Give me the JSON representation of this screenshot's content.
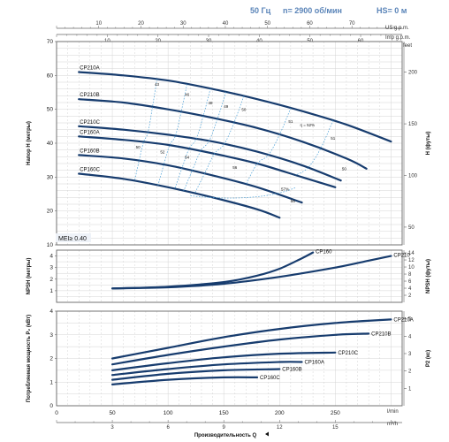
{
  "header": {
    "frequency": "50 Гц",
    "speed": "n= 2900 об/мин",
    "hs": "HS= 0 м"
  },
  "colors": {
    "curve": "#173c6e",
    "efficiency_iso": "#4a9fd6",
    "header": "#5a84b8"
  },
  "top_units": {
    "us_gpm": "US g.p.m.",
    "imp_gpm": "Imp g.p.m."
  },
  "top_axis_us": [
    10,
    20,
    30,
    40,
    50,
    60,
    70
  ],
  "top_axis_imp": [
    10,
    20,
    30,
    40,
    50,
    60
  ],
  "x_label": "Производительность Q",
  "x_unit_l": "l/min",
  "x_unit_m3": "m³/h",
  "x_ticks": [
    50,
    100,
    150,
    200,
    250
  ],
  "x_ticks_m3": [
    3,
    6,
    9,
    12,
    15
  ],
  "mei": "MEI≥ 0.40",
  "chart_data": [
    {
      "type": "line",
      "panel": "head",
      "ylabel": "Напор H (метры)",
      "y2label": "H (футы)",
      "y2unit": "feet",
      "ylim": [
        10,
        70
      ],
      "yticks": [
        10,
        20,
        30,
        40,
        50,
        60,
        70
      ],
      "y2ticks": [
        50,
        100,
        150,
        200
      ],
      "series": [
        {
          "name": "CP210A",
          "x": [
            20,
            60,
            100,
            140,
            180,
            220,
            260,
            300
          ],
          "y": [
            61,
            60,
            58.5,
            56,
            53,
            49.5,
            45.5,
            40.5
          ]
        },
        {
          "name": "CP210B",
          "x": [
            20,
            60,
            100,
            140,
            180,
            220,
            260,
            278
          ],
          "y": [
            53,
            52,
            50,
            47.5,
            44.5,
            40.5,
            35.5,
            32.5
          ]
        },
        {
          "name": "CP210C",
          "x": [
            20,
            60,
            100,
            140,
            180,
            220,
            255
          ],
          "y": [
            45,
            44,
            42.5,
            40.5,
            37.5,
            33.5,
            29
          ]
        },
        {
          "name": "CP160A",
          "x": [
            20,
            60,
            100,
            140,
            180,
            220,
            250
          ],
          "y": [
            42,
            41,
            39.5,
            37,
            34,
            30,
            27
          ]
        },
        {
          "name": "CP160B",
          "x": [
            20,
            60,
            100,
            140,
            180,
            220
          ],
          "y": [
            36.5,
            35.5,
            33.5,
            30.5,
            27,
            22.5
          ]
        },
        {
          "name": "CP160C",
          "x": [
            20,
            60,
            100,
            140,
            180,
            200
          ],
          "y": [
            31,
            29.5,
            27,
            24,
            20.5,
            18
          ]
        }
      ],
      "annotations": [
        {
          "text": "43",
          "x": 90,
          "y": 57
        },
        {
          "text": "46",
          "x": 117,
          "y": 54
        },
        {
          "text": "48",
          "x": 138,
          "y": 51.5
        },
        {
          "text": "49",
          "x": 152,
          "y": 50.5
        },
        {
          "text": "50",
          "x": 168,
          "y": 49.5
        },
        {
          "text": "51",
          "x": 210,
          "y": 46
        },
        {
          "text": "η = 52%",
          "x": 225,
          "y": 45
        },
        {
          "text": "51",
          "x": 248,
          "y": 41
        },
        {
          "text": "50",
          "x": 73,
          "y": 38.5
        },
        {
          "text": "52",
          "x": 95,
          "y": 37
        },
        {
          "text": "54",
          "x": 117,
          "y": 35.5
        },
        {
          "text": "56",
          "x": 160,
          "y": 32.5
        },
        {
          "text": "56",
          "x": 212,
          "y": 22.5
        },
        {
          "text": "57%",
          "x": 205,
          "y": 26
        },
        {
          "text": "50",
          "x": 258,
          "y": 32
        }
      ]
    },
    {
      "type": "line",
      "panel": "npsh",
      "ylabel": "NPSH (метры)",
      "y2label": "NPSH (футы)",
      "ylim": [
        0,
        4.5
      ],
      "yticks": [
        1,
        2,
        3,
        4
      ],
      "y2ticks": [
        2,
        4,
        6,
        8,
        10,
        12,
        14
      ],
      "series": [
        {
          "name": "CP160",
          "x": [
            50,
            100,
            150,
            180,
            200,
            220,
            230
          ],
          "y": [
            1.2,
            1.35,
            1.75,
            2.3,
            2.9,
            3.8,
            4.3
          ]
        },
        {
          "name": "CP210",
          "x": [
            50,
            100,
            150,
            200,
            250,
            280,
            300
          ],
          "y": [
            1.2,
            1.3,
            1.6,
            2.2,
            3.0,
            3.6,
            4.0
          ]
        }
      ]
    },
    {
      "type": "line",
      "panel": "power",
      "ylabel": "Потребляемая мощность P₂ (кВт)",
      "y2label": "P2 (кс)",
      "ylim": [
        0,
        4
      ],
      "yticks": [
        1,
        2,
        3,
        4
      ],
      "y2ticks": [
        1,
        2,
        3,
        4,
        5
      ],
      "series": [
        {
          "name": "CP210A",
          "x": [
            50,
            100,
            150,
            200,
            250,
            300
          ],
          "y": [
            2.0,
            2.45,
            2.9,
            3.25,
            3.5,
            3.65
          ]
        },
        {
          "name": "CP210B",
          "x": [
            50,
            100,
            150,
            200,
            250,
            280
          ],
          "y": [
            1.75,
            2.15,
            2.5,
            2.8,
            3.0,
            3.05
          ]
        },
        {
          "name": "CP210C",
          "x": [
            50,
            100,
            150,
            200,
            250
          ],
          "y": [
            1.5,
            1.8,
            2.05,
            2.2,
            2.25
          ]
        },
        {
          "name": "CP160A",
          "x": [
            50,
            100,
            150,
            200,
            220
          ],
          "y": [
            1.3,
            1.55,
            1.75,
            1.85,
            1.85
          ]
        },
        {
          "name": "CP160B",
          "x": [
            50,
            100,
            150,
            200
          ],
          "y": [
            1.1,
            1.35,
            1.5,
            1.55
          ]
        },
        {
          "name": "CP160C",
          "x": [
            50,
            100,
            150,
            180
          ],
          "y": [
            0.9,
            1.1,
            1.2,
            1.2
          ]
        }
      ]
    }
  ]
}
